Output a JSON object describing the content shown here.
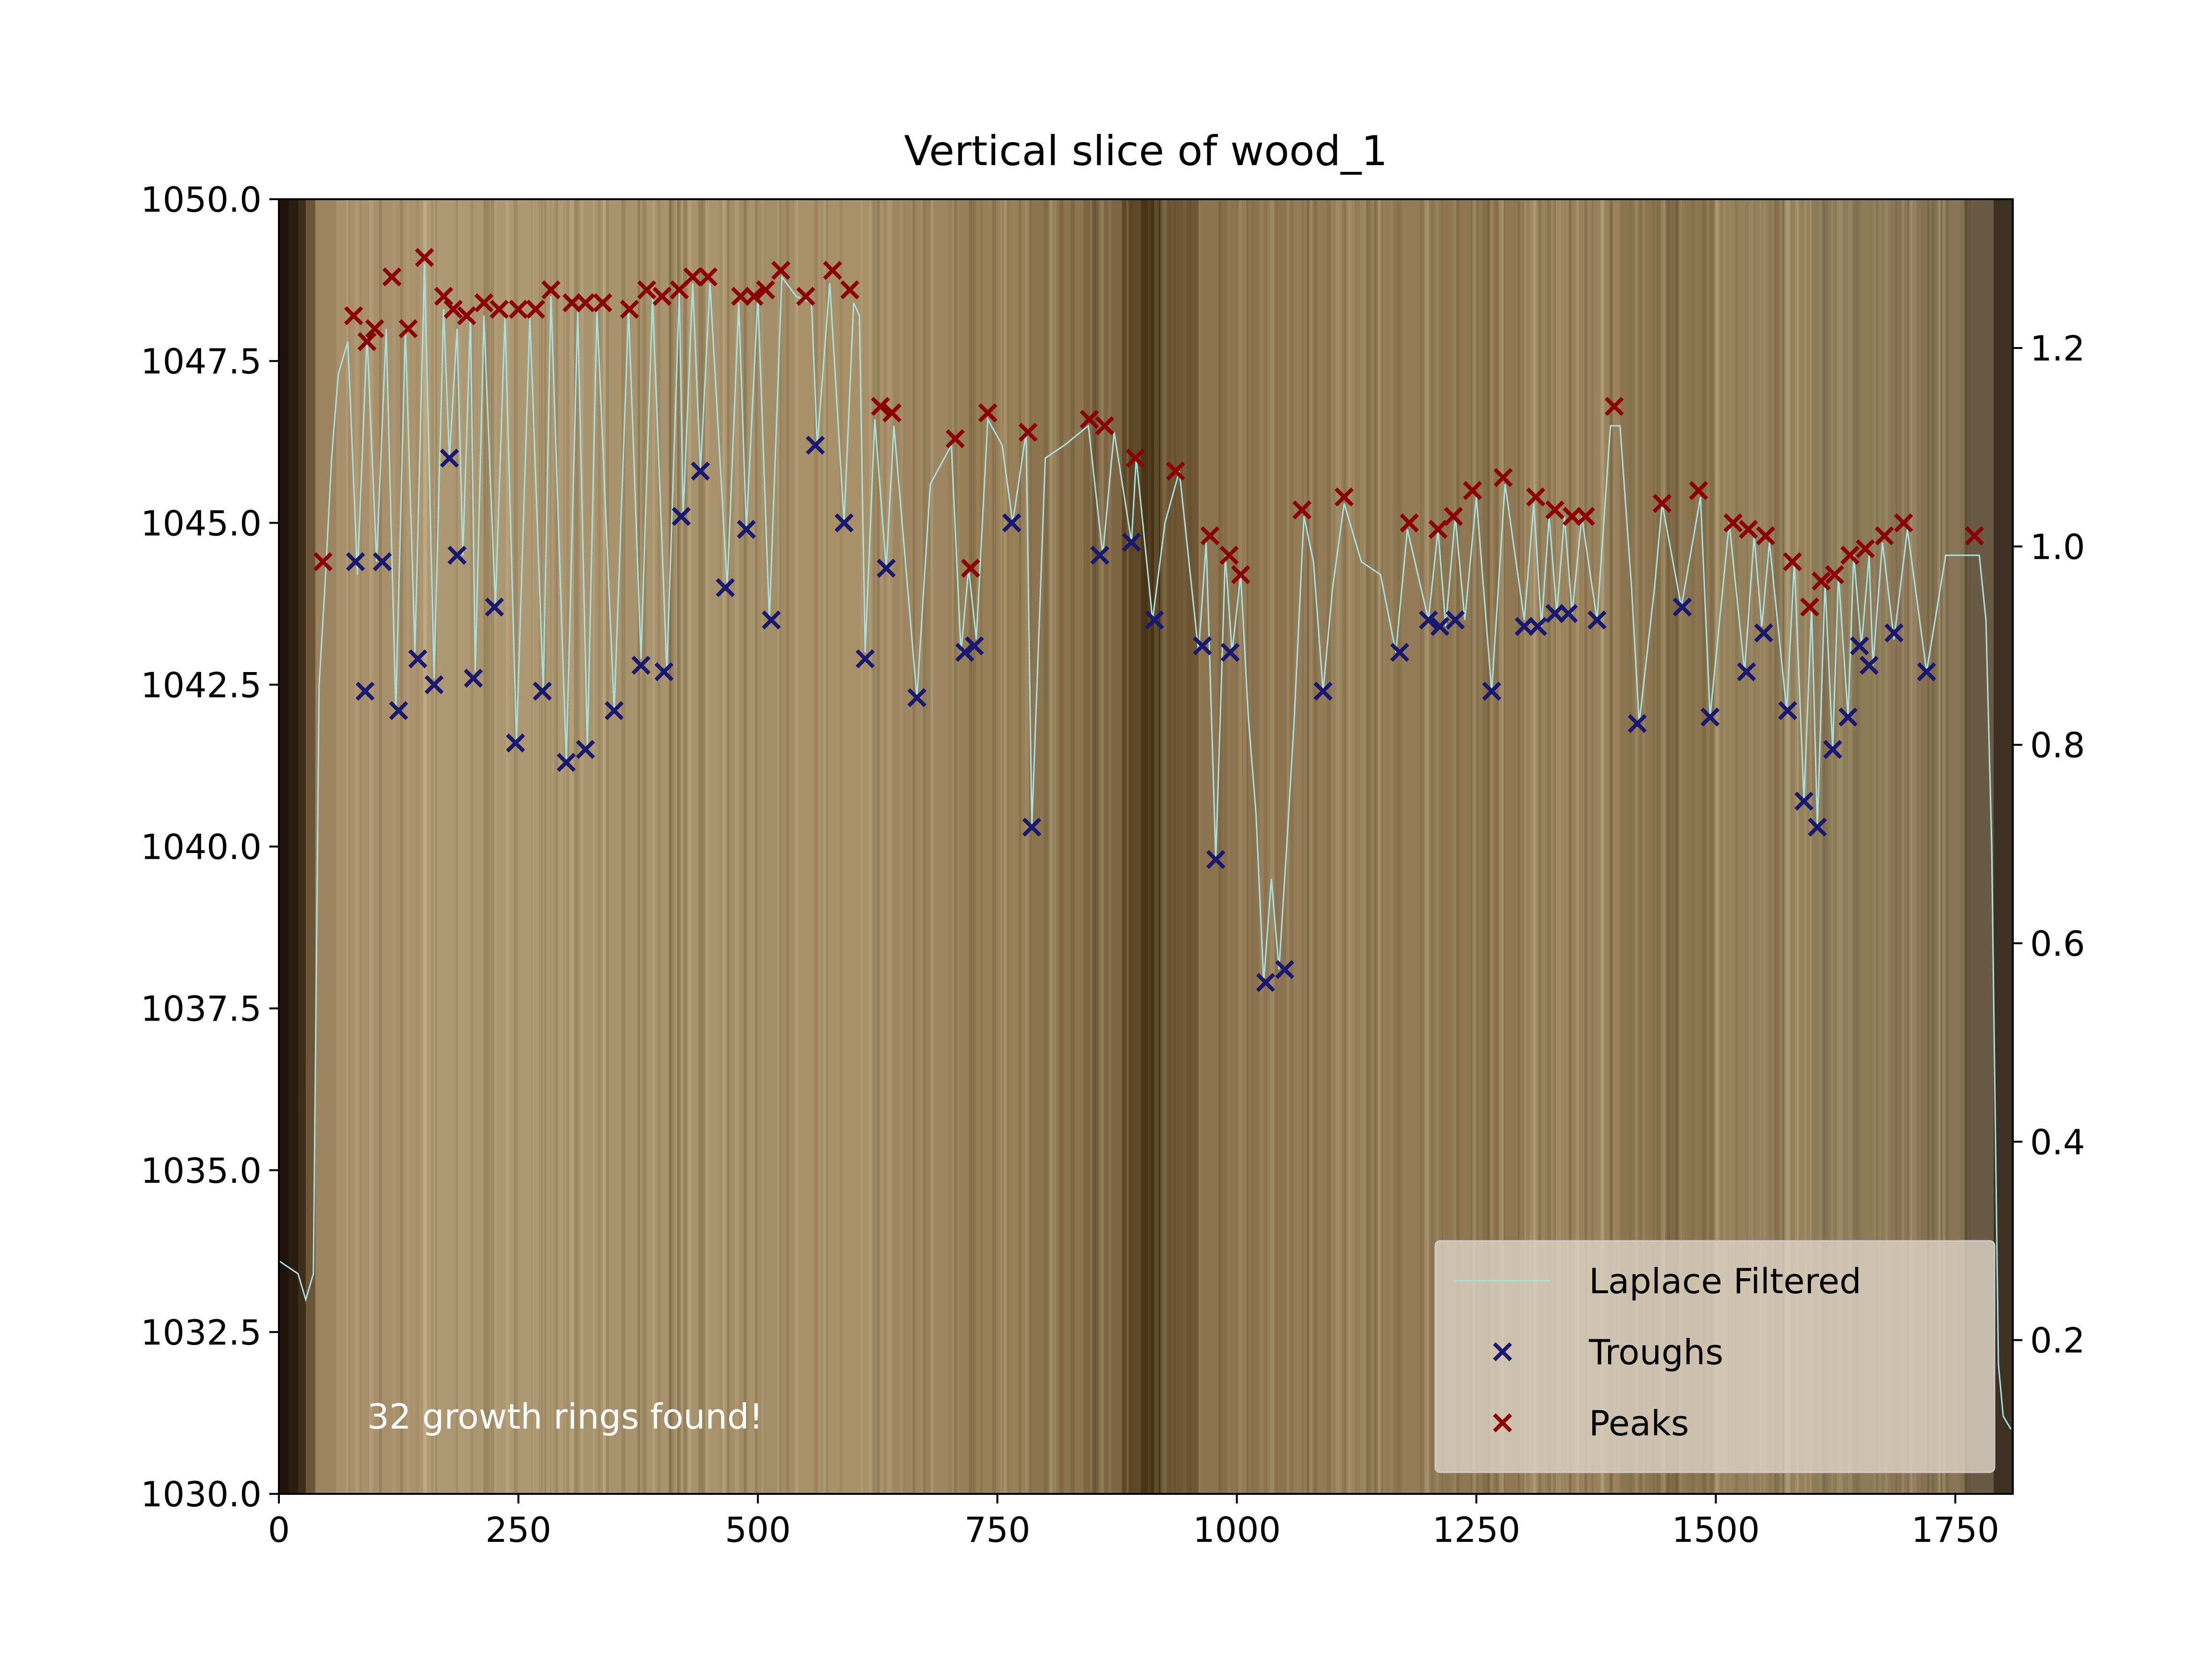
{
  "chart_data": {
    "type": "line",
    "title": "Vertical slice of wood_1",
    "xlabel": "",
    "ylabel": "",
    "xlim": [
      0,
      1810
    ],
    "ylim": [
      1030.0,
      1050.0
    ],
    "y2lim": [
      0.045,
      1.35
    ],
    "x_ticks": [
      0,
      250,
      500,
      750,
      1000,
      1250,
      1500,
      1750
    ],
    "x_tick_labels": [
      "0",
      "250",
      "500",
      "750",
      "1000",
      "1250",
      "1500",
      "1750"
    ],
    "y_ticks": [
      1030.0,
      1032.5,
      1035.0,
      1037.5,
      1040.0,
      1042.5,
      1045.0,
      1047.5,
      1050.0
    ],
    "y_tick_labels": [
      "1030.0",
      "1032.5",
      "1035.0",
      "1037.5",
      "1040.0",
      "1042.5",
      "1045.0",
      "1047.5",
      "1050.0"
    ],
    "y2_ticks": [
      0.2,
      0.4,
      0.6,
      0.8,
      1.0,
      1.2
    ],
    "y2_tick_labels": [
      "0.2",
      "0.4",
      "0.6",
      "0.8",
      "1.0",
      "1.2"
    ],
    "annotation": "32 growth rings found!",
    "legend": {
      "position": "lower-right",
      "entries": [
        {
          "label": "Laplace Filtered",
          "marker": "line",
          "color": "#a8e0e0"
        },
        {
          "label": "Troughs",
          "marker": "x",
          "color": "#191970"
        },
        {
          "label": "Peaks",
          "marker": "x",
          "color": "#8b0000"
        }
      ]
    },
    "background_description_color": "#9c8662",
    "series": [
      {
        "name": "Laplace Filtered",
        "color": "#a8e0e0",
        "points": [
          [
            0,
            1033.6
          ],
          [
            20,
            1033.4
          ],
          [
            28,
            1033.0
          ],
          [
            36,
            1033.4
          ],
          [
            42,
            1042.5
          ],
          [
            48,
            1044.0
          ],
          [
            55,
            1046.0
          ],
          [
            62,
            1047.3
          ],
          [
            72,
            1047.8
          ],
          [
            82,
            1044.2
          ],
          [
            92,
            1047.9
          ],
          [
            102,
            1044.4
          ],
          [
            112,
            1048.0
          ],
          [
            122,
            1042.1
          ],
          [
            132,
            1048.0
          ],
          [
            142,
            1043.0
          ],
          [
            152,
            1049.0
          ],
          [
            162,
            1042.6
          ],
          [
            172,
            1048.3
          ],
          [
            178,
            1046.0
          ],
          [
            186,
            1048.0
          ],
          [
            192,
            1044.5
          ],
          [
            200,
            1048.2
          ],
          [
            205,
            1042.7
          ],
          [
            214,
            1048.2
          ],
          [
            226,
            1043.7
          ],
          [
            236,
            1048.2
          ],
          [
            248,
            1041.6
          ],
          [
            262,
            1048.2
          ],
          [
            276,
            1042.4
          ],
          [
            284,
            1048.5
          ],
          [
            300,
            1041.3
          ],
          [
            312,
            1048.3
          ],
          [
            322,
            1041.5
          ],
          [
            332,
            1048.3
          ],
          [
            350,
            1042.1
          ],
          [
            365,
            1048.3
          ],
          [
            378,
            1042.9
          ],
          [
            390,
            1048.5
          ],
          [
            405,
            1042.7
          ],
          [
            418,
            1048.6
          ],
          [
            422,
            1045.1
          ],
          [
            432,
            1048.7
          ],
          [
            440,
            1045.8
          ],
          [
            450,
            1048.7
          ],
          [
            468,
            1044.0
          ],
          [
            480,
            1048.4
          ],
          [
            488,
            1044.9
          ],
          [
            500,
            1048.5
          ],
          [
            512,
            1043.5
          ],
          [
            525,
            1048.8
          ],
          [
            540,
            1048.5
          ],
          [
            556,
            1048.4
          ],
          [
            562,
            1046.2
          ],
          [
            575,
            1048.7
          ],
          [
            590,
            1045.0
          ],
          [
            600,
            1048.4
          ],
          [
            606,
            1048.2
          ],
          [
            612,
            1043.0
          ],
          [
            622,
            1046.6
          ],
          [
            634,
            1044.3
          ],
          [
            642,
            1046.5
          ],
          [
            666,
            1042.3
          ],
          [
            680,
            1045.6
          ],
          [
            702,
            1046.2
          ],
          [
            712,
            1043.0
          ],
          [
            720,
            1044.3
          ],
          [
            728,
            1043.2
          ],
          [
            740,
            1046.6
          ],
          [
            755,
            1046.2
          ],
          [
            766,
            1045.0
          ],
          [
            780,
            1046.4
          ],
          [
            786,
            1040.3
          ],
          [
            800,
            1046.0
          ],
          [
            820,
            1046.2
          ],
          [
            845,
            1046.5
          ],
          [
            860,
            1044.5
          ],
          [
            872,
            1046.4
          ],
          [
            890,
            1044.7
          ],
          [
            895,
            1046.0
          ],
          [
            912,
            1043.5
          ],
          [
            925,
            1045.0
          ],
          [
            940,
            1045.8
          ],
          [
            960,
            1043.0
          ],
          [
            968,
            1044.7
          ],
          [
            978,
            1039.8
          ],
          [
            988,
            1044.5
          ],
          [
            995,
            1043.0
          ],
          [
            1004,
            1044.2
          ],
          [
            1012,
            1042.0
          ],
          [
            1020,
            1040.5
          ],
          [
            1028,
            1037.9
          ],
          [
            1036,
            1039.5
          ],
          [
            1044,
            1038.1
          ],
          [
            1052,
            1040.0
          ],
          [
            1060,
            1042.0
          ],
          [
            1070,
            1045.1
          ],
          [
            1080,
            1044.4
          ],
          [
            1090,
            1042.4
          ],
          [
            1100,
            1044.0
          ],
          [
            1112,
            1045.3
          ],
          [
            1130,
            1044.4
          ],
          [
            1150,
            1044.2
          ],
          [
            1166,
            1043.0
          ],
          [
            1178,
            1044.9
          ],
          [
            1200,
            1043.5
          ],
          [
            1210,
            1044.9
          ],
          [
            1218,
            1043.4
          ],
          [
            1228,
            1045.1
          ],
          [
            1238,
            1043.5
          ],
          [
            1250,
            1045.4
          ],
          [
            1266,
            1042.4
          ],
          [
            1280,
            1045.6
          ],
          [
            1300,
            1043.5
          ],
          [
            1310,
            1045.3
          ],
          [
            1318,
            1043.4
          ],
          [
            1326,
            1045.1
          ],
          [
            1334,
            1043.6
          ],
          [
            1342,
            1045.1
          ],
          [
            1350,
            1043.6
          ],
          [
            1360,
            1045.1
          ],
          [
            1376,
            1043.5
          ],
          [
            1390,
            1046.5
          ],
          [
            1400,
            1046.5
          ],
          [
            1412,
            1044.0
          ],
          [
            1420,
            1041.9
          ],
          [
            1436,
            1044.0
          ],
          [
            1444,
            1045.3
          ],
          [
            1464,
            1043.7
          ],
          [
            1484,
            1045.4
          ],
          [
            1494,
            1042.0
          ],
          [
            1514,
            1045.0
          ],
          [
            1530,
            1042.7
          ],
          [
            1540,
            1044.8
          ],
          [
            1548,
            1043.4
          ],
          [
            1556,
            1044.7
          ],
          [
            1574,
            1042.1
          ],
          [
            1582,
            1044.4
          ],
          [
            1592,
            1040.7
          ],
          [
            1600,
            1043.7
          ],
          [
            1606,
            1040.3
          ],
          [
            1614,
            1044.1
          ],
          [
            1622,
            1041.5
          ],
          [
            1628,
            1044.2
          ],
          [
            1638,
            1042.0
          ],
          [
            1644,
            1044.5
          ],
          [
            1652,
            1043.1
          ],
          [
            1660,
            1044.5
          ],
          [
            1664,
            1042.8
          ],
          [
            1674,
            1044.7
          ],
          [
            1686,
            1043.2
          ],
          [
            1700,
            1044.9
          ],
          [
            1720,
            1042.7
          ],
          [
            1740,
            1044.5
          ],
          [
            1762,
            1044.5
          ],
          [
            1775,
            1044.5
          ],
          [
            1782,
            1043.5
          ],
          [
            1788,
            1040.0
          ],
          [
            1795,
            1032.0
          ],
          [
            1800,
            1031.2
          ],
          [
            1808,
            1031.0
          ]
        ]
      }
    ],
    "troughs": [
      [
        80,
        1044.4
      ],
      [
        90,
        1042.4
      ],
      [
        108,
        1044.4
      ],
      [
        125,
        1042.1
      ],
      [
        145,
        1042.9
      ],
      [
        162,
        1042.5
      ],
      [
        178,
        1046.0
      ],
      [
        186,
        1044.5
      ],
      [
        203,
        1042.6
      ],
      [
        225,
        1043.7
      ],
      [
        247,
        1041.6
      ],
      [
        275,
        1042.4
      ],
      [
        300,
        1041.3
      ],
      [
        320,
        1041.5
      ],
      [
        350,
        1042.1
      ],
      [
        378,
        1042.8
      ],
      [
        402,
        1042.7
      ],
      [
        420,
        1045.1
      ],
      [
        440,
        1045.8
      ],
      [
        466,
        1044.0
      ],
      [
        488,
        1044.9
      ],
      [
        514,
        1043.5
      ],
      [
        560,
        1046.2
      ],
      [
        590,
        1045.0
      ],
      [
        612,
        1042.9
      ],
      [
        634,
        1044.3
      ],
      [
        666,
        1042.3
      ],
      [
        716,
        1043.0
      ],
      [
        726,
        1043.1
      ],
      [
        765,
        1045.0
      ],
      [
        786,
        1040.3
      ],
      [
        857,
        1044.5
      ],
      [
        890,
        1044.7
      ],
      [
        914,
        1043.5
      ],
      [
        964,
        1043.1
      ],
      [
        978,
        1039.8
      ],
      [
        993,
        1043.0
      ],
      [
        1030,
        1037.9
      ],
      [
        1050,
        1038.1
      ],
      [
        1090,
        1042.4
      ],
      [
        1170,
        1043.0
      ],
      [
        1200,
        1043.5
      ],
      [
        1212,
        1043.4
      ],
      [
        1228,
        1043.5
      ],
      [
        1266,
        1042.4
      ],
      [
        1300,
        1043.4
      ],
      [
        1314,
        1043.4
      ],
      [
        1332,
        1043.6
      ],
      [
        1346,
        1043.6
      ],
      [
        1376,
        1043.5
      ],
      [
        1418,
        1041.9
      ],
      [
        1465,
        1043.7
      ],
      [
        1494,
        1042.0
      ],
      [
        1532,
        1042.7
      ],
      [
        1550,
        1043.3
      ],
      [
        1575,
        1042.1
      ],
      [
        1592,
        1040.7
      ],
      [
        1606,
        1040.3
      ],
      [
        1622,
        1041.5
      ],
      [
        1638,
        1042.0
      ],
      [
        1650,
        1043.1
      ],
      [
        1660,
        1042.8
      ],
      [
        1686,
        1043.3
      ],
      [
        1720,
        1042.7
      ]
    ],
    "peaks": [
      [
        46,
        1044.4
      ],
      [
        78,
        1048.2
      ],
      [
        92,
        1047.8
      ],
      [
        100,
        1048.0
      ],
      [
        118,
        1048.8
      ],
      [
        135,
        1048.0
      ],
      [
        152,
        1049.1
      ],
      [
        172,
        1048.5
      ],
      [
        182,
        1048.3
      ],
      [
        196,
        1048.2
      ],
      [
        214,
        1048.4
      ],
      [
        230,
        1048.3
      ],
      [
        250,
        1048.3
      ],
      [
        268,
        1048.3
      ],
      [
        284,
        1048.6
      ],
      [
        306,
        1048.4
      ],
      [
        320,
        1048.4
      ],
      [
        338,
        1048.4
      ],
      [
        366,
        1048.3
      ],
      [
        384,
        1048.6
      ],
      [
        400,
        1048.5
      ],
      [
        418,
        1048.6
      ],
      [
        432,
        1048.8
      ],
      [
        448,
        1048.8
      ],
      [
        482,
        1048.5
      ],
      [
        496,
        1048.5
      ],
      [
        508,
        1048.6
      ],
      [
        524,
        1048.9
      ],
      [
        550,
        1048.5
      ],
      [
        578,
        1048.9
      ],
      [
        596,
        1048.6
      ],
      [
        628,
        1046.8
      ],
      [
        640,
        1046.7
      ],
      [
        706,
        1046.3
      ],
      [
        722,
        1044.3
      ],
      [
        740,
        1046.7
      ],
      [
        782,
        1046.4
      ],
      [
        846,
        1046.6
      ],
      [
        862,
        1046.5
      ],
      [
        894,
        1046.0
      ],
      [
        936,
        1045.8
      ],
      [
        972,
        1044.8
      ],
      [
        992,
        1044.5
      ],
      [
        1004,
        1044.2
      ],
      [
        1068,
        1045.2
      ],
      [
        1112,
        1045.4
      ],
      [
        1180,
        1045.0
      ],
      [
        1210,
        1044.9
      ],
      [
        1226,
        1045.1
      ],
      [
        1246,
        1045.5
      ],
      [
        1278,
        1045.7
      ],
      [
        1312,
        1045.4
      ],
      [
        1332,
        1045.2
      ],
      [
        1350,
        1045.1
      ],
      [
        1364,
        1045.1
      ],
      [
        1394,
        1046.8
      ],
      [
        1444,
        1045.3
      ],
      [
        1482,
        1045.5
      ],
      [
        1518,
        1045.0
      ],
      [
        1534,
        1044.9
      ],
      [
        1552,
        1044.8
      ],
      [
        1580,
        1044.4
      ],
      [
        1598,
        1043.7
      ],
      [
        1610,
        1044.1
      ],
      [
        1624,
        1044.2
      ],
      [
        1640,
        1044.5
      ],
      [
        1656,
        1044.6
      ],
      [
        1676,
        1044.8
      ],
      [
        1696,
        1045.0
      ],
      [
        1770,
        1044.8
      ]
    ],
    "stripes": [
      {
        "x0": 0,
        "x1": 10,
        "color": "#1f140b"
      },
      {
        "x0": 10,
        "x1": 20,
        "color": "#2a1d10"
      },
      {
        "x0": 20,
        "x1": 28,
        "color": "#3d2c19"
      },
      {
        "x0": 28,
        "x1": 38,
        "color": "#6b5536"
      },
      {
        "x0": 38,
        "x1": 60,
        "color": "#9c8460"
      },
      {
        "x0": 60,
        "x1": 150,
        "color": "#a8906a"
      },
      {
        "x0": 150,
        "x1": 300,
        "color": "#ae9872"
      },
      {
        "x0": 300,
        "x1": 460,
        "color": "#a9936d"
      },
      {
        "x0": 460,
        "x1": 540,
        "color": "#a38d66"
      },
      {
        "x0": 540,
        "x1": 620,
        "color": "#a89169"
      },
      {
        "x0": 620,
        "x1": 700,
        "color": "#9e8760"
      },
      {
        "x0": 700,
        "x1": 780,
        "color": "#977f57"
      },
      {
        "x0": 780,
        "x1": 840,
        "color": "#8c7550"
      },
      {
        "x0": 840,
        "x1": 880,
        "color": "#7d6543"
      },
      {
        "x0": 880,
        "x1": 900,
        "color": "#5e4828"
      },
      {
        "x0": 900,
        "x1": 920,
        "color": "#4a3518"
      },
      {
        "x0": 920,
        "x1": 960,
        "color": "#6e5634"
      },
      {
        "x0": 960,
        "x1": 1060,
        "color": "#8c7450"
      },
      {
        "x0": 1060,
        "x1": 1200,
        "color": "#937c57"
      },
      {
        "x0": 1200,
        "x1": 1300,
        "color": "#8e7752"
      },
      {
        "x0": 1300,
        "x1": 1400,
        "color": "#98815b"
      },
      {
        "x0": 1400,
        "x1": 1500,
        "color": "#8c7550"
      },
      {
        "x0": 1500,
        "x1": 1600,
        "color": "#95805c"
      },
      {
        "x0": 1600,
        "x1": 1680,
        "color": "#8d7a58"
      },
      {
        "x0": 1680,
        "x1": 1760,
        "color": "#8a7656"
      },
      {
        "x0": 1760,
        "x1": 1790,
        "color": "#6a5a43"
      },
      {
        "x0": 1790,
        "x1": 1810,
        "color": "#3d3122"
      }
    ]
  }
}
